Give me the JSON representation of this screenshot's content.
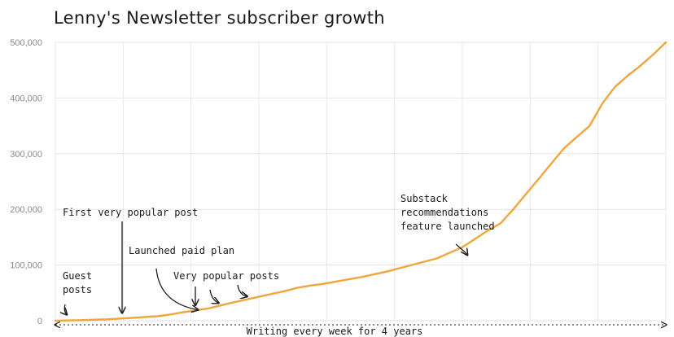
{
  "chart_data": {
    "type": "line",
    "title": "Lenny's Newsletter subscriber growth",
    "xlabel": "Writing every week for 4 years",
    "ylabel": "",
    "ylim": [
      0,
      500000
    ],
    "yticks": [
      0,
      100000,
      200000,
      300000,
      400000,
      500000
    ],
    "ytick_labels": [
      "0",
      "100,000",
      "200,000",
      "300,000",
      "400,000",
      "500,000"
    ],
    "xlim": [
      0,
      48
    ],
    "grid": true,
    "color": "#f0a63c",
    "series": [
      {
        "x": [
          0,
          2,
          4,
          6,
          8,
          9,
          10,
          12,
          14,
          16,
          18,
          19,
          20,
          21,
          22,
          24,
          26,
          28,
          30,
          32,
          34,
          35,
          36,
          38,
          40,
          41,
          42,
          43,
          44,
          45,
          46,
          47,
          48
        ],
        "values": [
          0,
          1000,
          2500,
          5000,
          8000,
          11000,
          15000,
          22000,
          33000,
          43000,
          53000,
          59000,
          63000,
          66000,
          70000,
          78000,
          88000,
          100000,
          112000,
          132000,
          162000,
          175000,
          200000,
          255000,
          310000,
          330000,
          350000,
          390000,
          420000,
          440000,
          458000,
          478000,
          500000
        ]
      }
    ],
    "annotations": [
      {
        "label": "Guest\nposts",
        "x": 1.0,
        "y": 3000
      },
      {
        "label": "First very popular post",
        "x": 6.2,
        "y": 6000
      },
      {
        "label": "Launched paid plan",
        "x": 11.3,
        "y": 11000
      },
      {
        "label": "Very popular posts",
        "x": 13.8,
        "y": 20000
      },
      {
        "label": "Substack\nrecommendations\nfeature launched",
        "x": 32.5,
        "y": 110000
      }
    ]
  }
}
